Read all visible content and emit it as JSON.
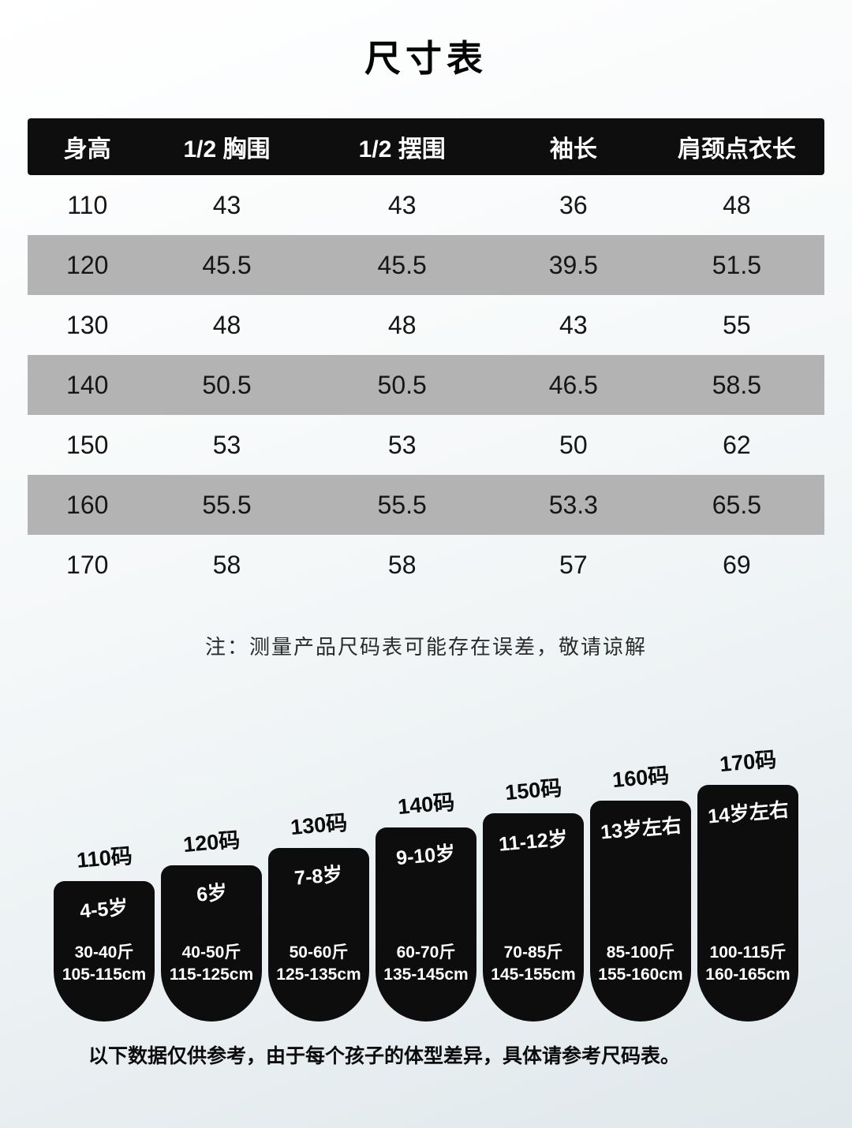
{
  "title": "尺寸表",
  "chart_data": {
    "type": "table",
    "title": "尺寸表",
    "columns": [
      "身高",
      "1/2 胸围",
      "1/2 摆围",
      "袖长",
      "肩颈点衣长"
    ],
    "rows": [
      [
        "110",
        "43",
        "43",
        "36",
        "48"
      ],
      [
        "120",
        "45.5",
        "45.5",
        "39.5",
        "51.5"
      ],
      [
        "130",
        "48",
        "48",
        "43",
        "55"
      ],
      [
        "140",
        "50.5",
        "50.5",
        "46.5",
        "58.5"
      ],
      [
        "150",
        "53",
        "53",
        "50",
        "62"
      ],
      [
        "160",
        "55.5",
        "55.5",
        "53.3",
        "65.5"
      ],
      [
        "170",
        "58",
        "58",
        "57",
        "69"
      ]
    ]
  },
  "note": "注：测量产品尺码表可能存在误差，敬请谅解",
  "size_guide": [
    {
      "size": "110码",
      "age": "4-5岁",
      "weight": "30-40斤",
      "height": "105-115cm"
    },
    {
      "size": "120码",
      "age": "6岁",
      "weight": "40-50斤",
      "height": "115-125cm"
    },
    {
      "size": "130码",
      "age": "7-8岁",
      "weight": "50-60斤",
      "height": "125-135cm"
    },
    {
      "size": "140码",
      "age": "9-10岁",
      "weight": "60-70斤",
      "height": "135-145cm"
    },
    {
      "size": "150码",
      "age": "11-12岁",
      "weight": "70-85斤",
      "height": "145-155cm"
    },
    {
      "size": "160码",
      "age": "13岁左右",
      "weight": "85-100斤",
      "height": "155-160cm"
    },
    {
      "size": "170码",
      "age": "14岁左右",
      "weight": "100-115斤",
      "height": "160-165cm"
    }
  ],
  "footer_note": "以下数据仅供参考，由于每个孩子的体型差异，具体请参考尺码表。",
  "colors": {
    "header_bg": "#0e0e0e",
    "alt_row_bg": "#b3b3b3",
    "silhouette_bg": "#0d0d0d",
    "page_bg_bottom": "#e0e8eb"
  }
}
